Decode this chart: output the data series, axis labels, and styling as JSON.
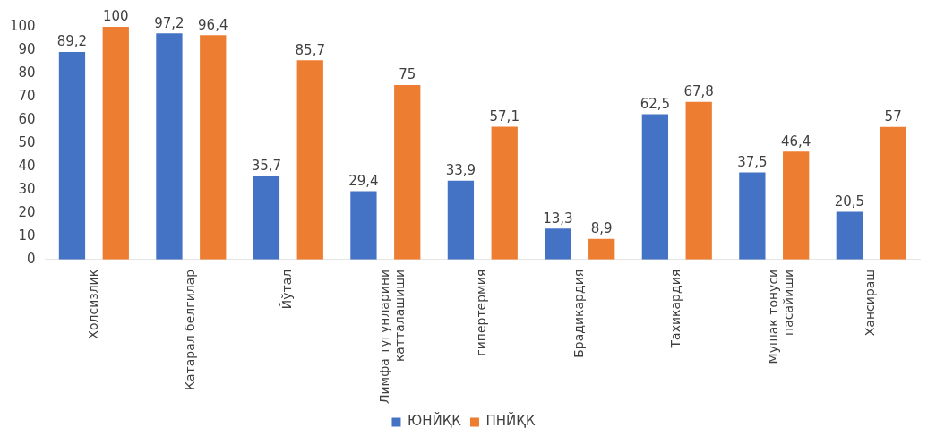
{
  "chart_data": {
    "type": "bar",
    "categories": [
      "Холсизлик",
      "Катарал белгилар",
      "Йўтал",
      "Лимфа тугунларини катталашиши",
      "гипертермия",
      "Брадикардия",
      "Тахикардия",
      "Мушак тонуси пасайиши",
      "Хансираш"
    ],
    "series": [
      {
        "name": "ЮНЙҚК",
        "color": "#4472c4",
        "values": [
          89.2,
          97.2,
          35.7,
          29.4,
          33.9,
          13.3,
          62.5,
          37.5,
          20.5
        ],
        "value_labels": [
          "89,2",
          "97,2",
          "35,7",
          "29,4",
          "33,9",
          "13,3",
          "62,5",
          "37,5",
          "20,5"
        ]
      },
      {
        "name": "ПНЙҚК",
        "color": "#ed7d31",
        "values": [
          100,
          96.4,
          85.7,
          75,
          57.1,
          8.9,
          67.8,
          46.4,
          57
        ],
        "value_labels": [
          "100",
          "96,4",
          "85,7",
          "75",
          "57,1",
          "8,9",
          "67,8",
          "46,4",
          "57"
        ]
      }
    ],
    "ylim": [
      0,
      100
    ],
    "yticks": [
      0,
      10,
      20,
      30,
      40,
      50,
      60,
      70,
      80,
      90,
      100
    ],
    "grid": false,
    "legend": "bottom"
  }
}
